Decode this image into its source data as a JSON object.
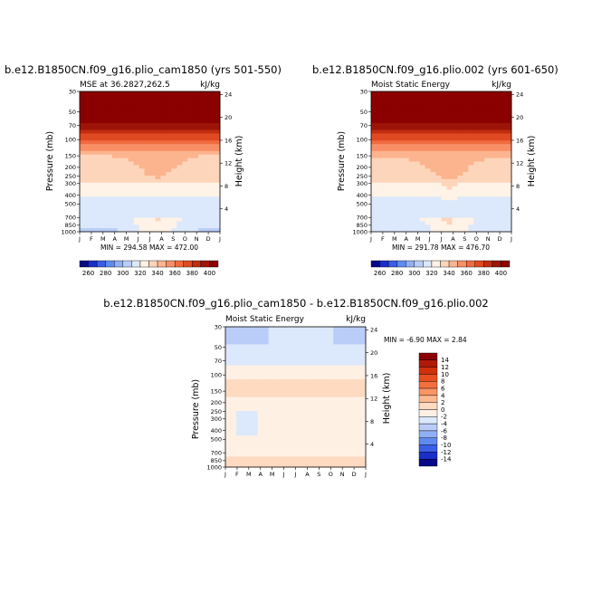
{
  "chart_data": [
    {
      "type": "heatmap",
      "panel": "top-left",
      "title": "b.e12.B1850CN.f09_g16.plio_cam1850 (yrs 501-550)",
      "left_string": "MSE at 36.2827,262.5",
      "right_string": "kJ/kg",
      "xlabel": "",
      "ylabel": "Pressure (mb)",
      "right_ylabel": "Height (km)",
      "x_ticks": [
        "J",
        "F",
        "M",
        "A",
        "M",
        "J",
        "J",
        "A",
        "S",
        "O",
        "N",
        "D",
        "J"
      ],
      "pressure_ticks": [
        "30",
        "50",
        "70",
        "100",
        "150",
        "200",
        "250",
        "300",
        "400",
        "500",
        "700",
        "850",
        "1000"
      ],
      "height_ticks": [
        "4",
        "8",
        "12",
        "16",
        "20",
        "24"
      ],
      "stats": "MIN = 294.58  MAX = 472.00",
      "min": 294.58,
      "max": 472.0
    },
    {
      "type": "heatmap",
      "panel": "top-right",
      "title": "b.e12.B1850CN.f09_g16.plio.002 (yrs 601-650)",
      "left_string": "Moist Static Energy",
      "right_string": "kJ/kg",
      "xlabel": "",
      "ylabel": "Pressure (mb)",
      "right_ylabel": "Height (km)",
      "x_ticks": [
        "J",
        "F",
        "M",
        "A",
        "M",
        "J",
        "J",
        "A",
        "S",
        "O",
        "N",
        "D",
        "J"
      ],
      "pressure_ticks": [
        "30",
        "50",
        "70",
        "100",
        "150",
        "200",
        "250",
        "300",
        "400",
        "500",
        "700",
        "850",
        "1000"
      ],
      "height_ticks": [
        "4",
        "8",
        "12",
        "16",
        "20",
        "24"
      ],
      "stats": "MIN = 291.78  MAX = 476.70",
      "min": 291.78,
      "max": 476.7
    },
    {
      "type": "heatmap",
      "panel": "bottom",
      "title": "b.e12.B1850CN.f09_g16.plio_cam1850 - b.e12.B1850CN.f09_g16.plio.002",
      "left_string": "Moist Static Energy",
      "right_string": "kJ/kg",
      "xlabel": "",
      "ylabel": "Pressure (mb)",
      "right_ylabel": "Height (km)",
      "x_ticks": [
        "J",
        "F",
        "M",
        "A",
        "M",
        "J",
        "J",
        "A",
        "S",
        "O",
        "N",
        "D",
        "J"
      ],
      "pressure_ticks": [
        "30",
        "50",
        "70",
        "100",
        "150",
        "200",
        "250",
        "300",
        "400",
        "500",
        "700",
        "850",
        "1000"
      ],
      "height_ticks": [
        "4",
        "8",
        "12",
        "16",
        "20",
        "24"
      ],
      "stats": "MIN =   -6.90 MAX =    2.84",
      "min": -6.9,
      "max": 2.84
    }
  ],
  "colorbars": {
    "absolute": {
      "labels": [
        "260",
        "280",
        "300",
        "320",
        "340",
        "360",
        "380",
        "400"
      ],
      "colors": [
        "#08088a",
        "#1a2fc8",
        "#3a5ee6",
        "#5f8af0",
        "#8fb0f5",
        "#b9cdf8",
        "#dce8fb",
        "#fff2e6",
        "#fdd5bb",
        "#fcb48f",
        "#f98f66",
        "#f16b40",
        "#e04a22",
        "#c22d10",
        "#9c1508",
        "#8b0000"
      ]
    },
    "difference": {
      "labels": [
        "14",
        "12",
        "10",
        "8",
        "6",
        "4",
        "2",
        "0",
        "-2",
        "-4",
        "-6",
        "-8",
        "-10",
        "-12",
        "-14"
      ],
      "colors": [
        "#8b0000",
        "#b01a08",
        "#d0300c",
        "#e84e1e",
        "#f56f3c",
        "#fa9464",
        "#fcb890",
        "#fddac0",
        "#fff0e4",
        "#dce8fb",
        "#b9cdf8",
        "#8fb0f5",
        "#5f8af0",
        "#3a5ee6",
        "#1a2fc8",
        "#08088a"
      ]
    }
  }
}
